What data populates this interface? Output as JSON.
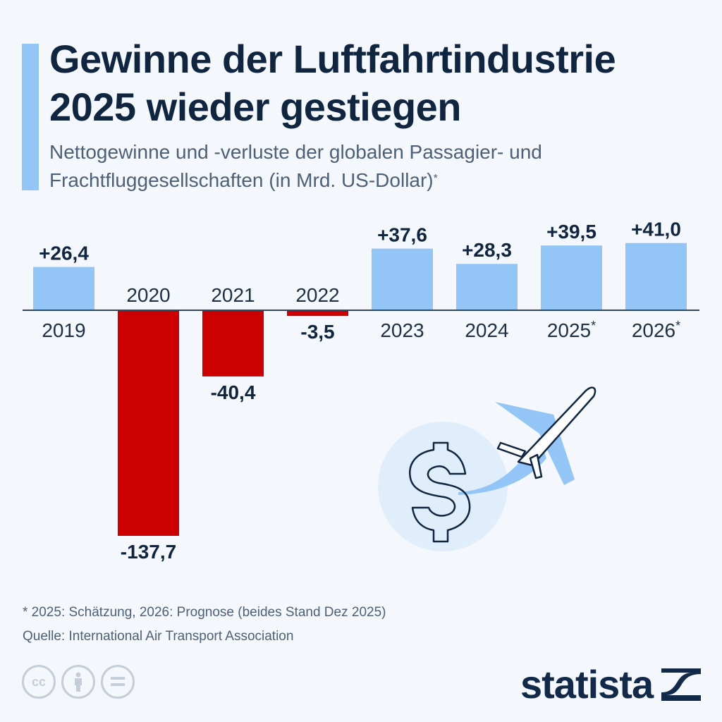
{
  "header": {
    "title_line1": "Gewinne der Luftfahrtindustrie",
    "title_line2": "2025 wieder gestiegen",
    "subtitle_line1": "Nettogewinne und -verluste der globalen Passagier- und",
    "subtitle_line2": "Frachtfluggesellschaften (in Mrd. US-Dollar)",
    "subtitle_marker": "*"
  },
  "colors": {
    "positive": "#93c6f7",
    "negative": "#cc0000",
    "text": "#0f2540",
    "accent": "#93c6f7"
  },
  "chart_data": {
    "type": "bar",
    "title": "Gewinne der Luftfahrtindustrie 2025 wieder gestiegen",
    "subtitle": "Nettogewinne und -verluste der globalen Passagier- und Frachtfluggesellschaften (in Mrd. US-Dollar)*",
    "xlabel": "",
    "ylabel": "",
    "categories": [
      "2019",
      "2020",
      "2021",
      "2022",
      "2023",
      "2024",
      "2025*",
      "2026*"
    ],
    "values": [
      26.4,
      -137.7,
      -40.4,
      -3.5,
      37.6,
      28.3,
      39.5,
      41.0
    ],
    "value_labels": [
      "+26,4",
      "-137,7",
      "-40,4",
      "-3,5",
      "+37,6",
      "+28,3",
      "+39,5",
      "+41,0"
    ],
    "ylim": [
      -137.7,
      41.0
    ],
    "grid": false,
    "legend": "none"
  },
  "footer": {
    "note": "* 2025: Schätzung, 2026: Prognose (beides Stand Dez 2025)",
    "source": "Quelle: International Air Transport Association",
    "license_icons": [
      "cc-icon",
      "attribution-icon",
      "no-derivatives-icon"
    ],
    "cc_text": "cc",
    "logo_text": "statista"
  }
}
